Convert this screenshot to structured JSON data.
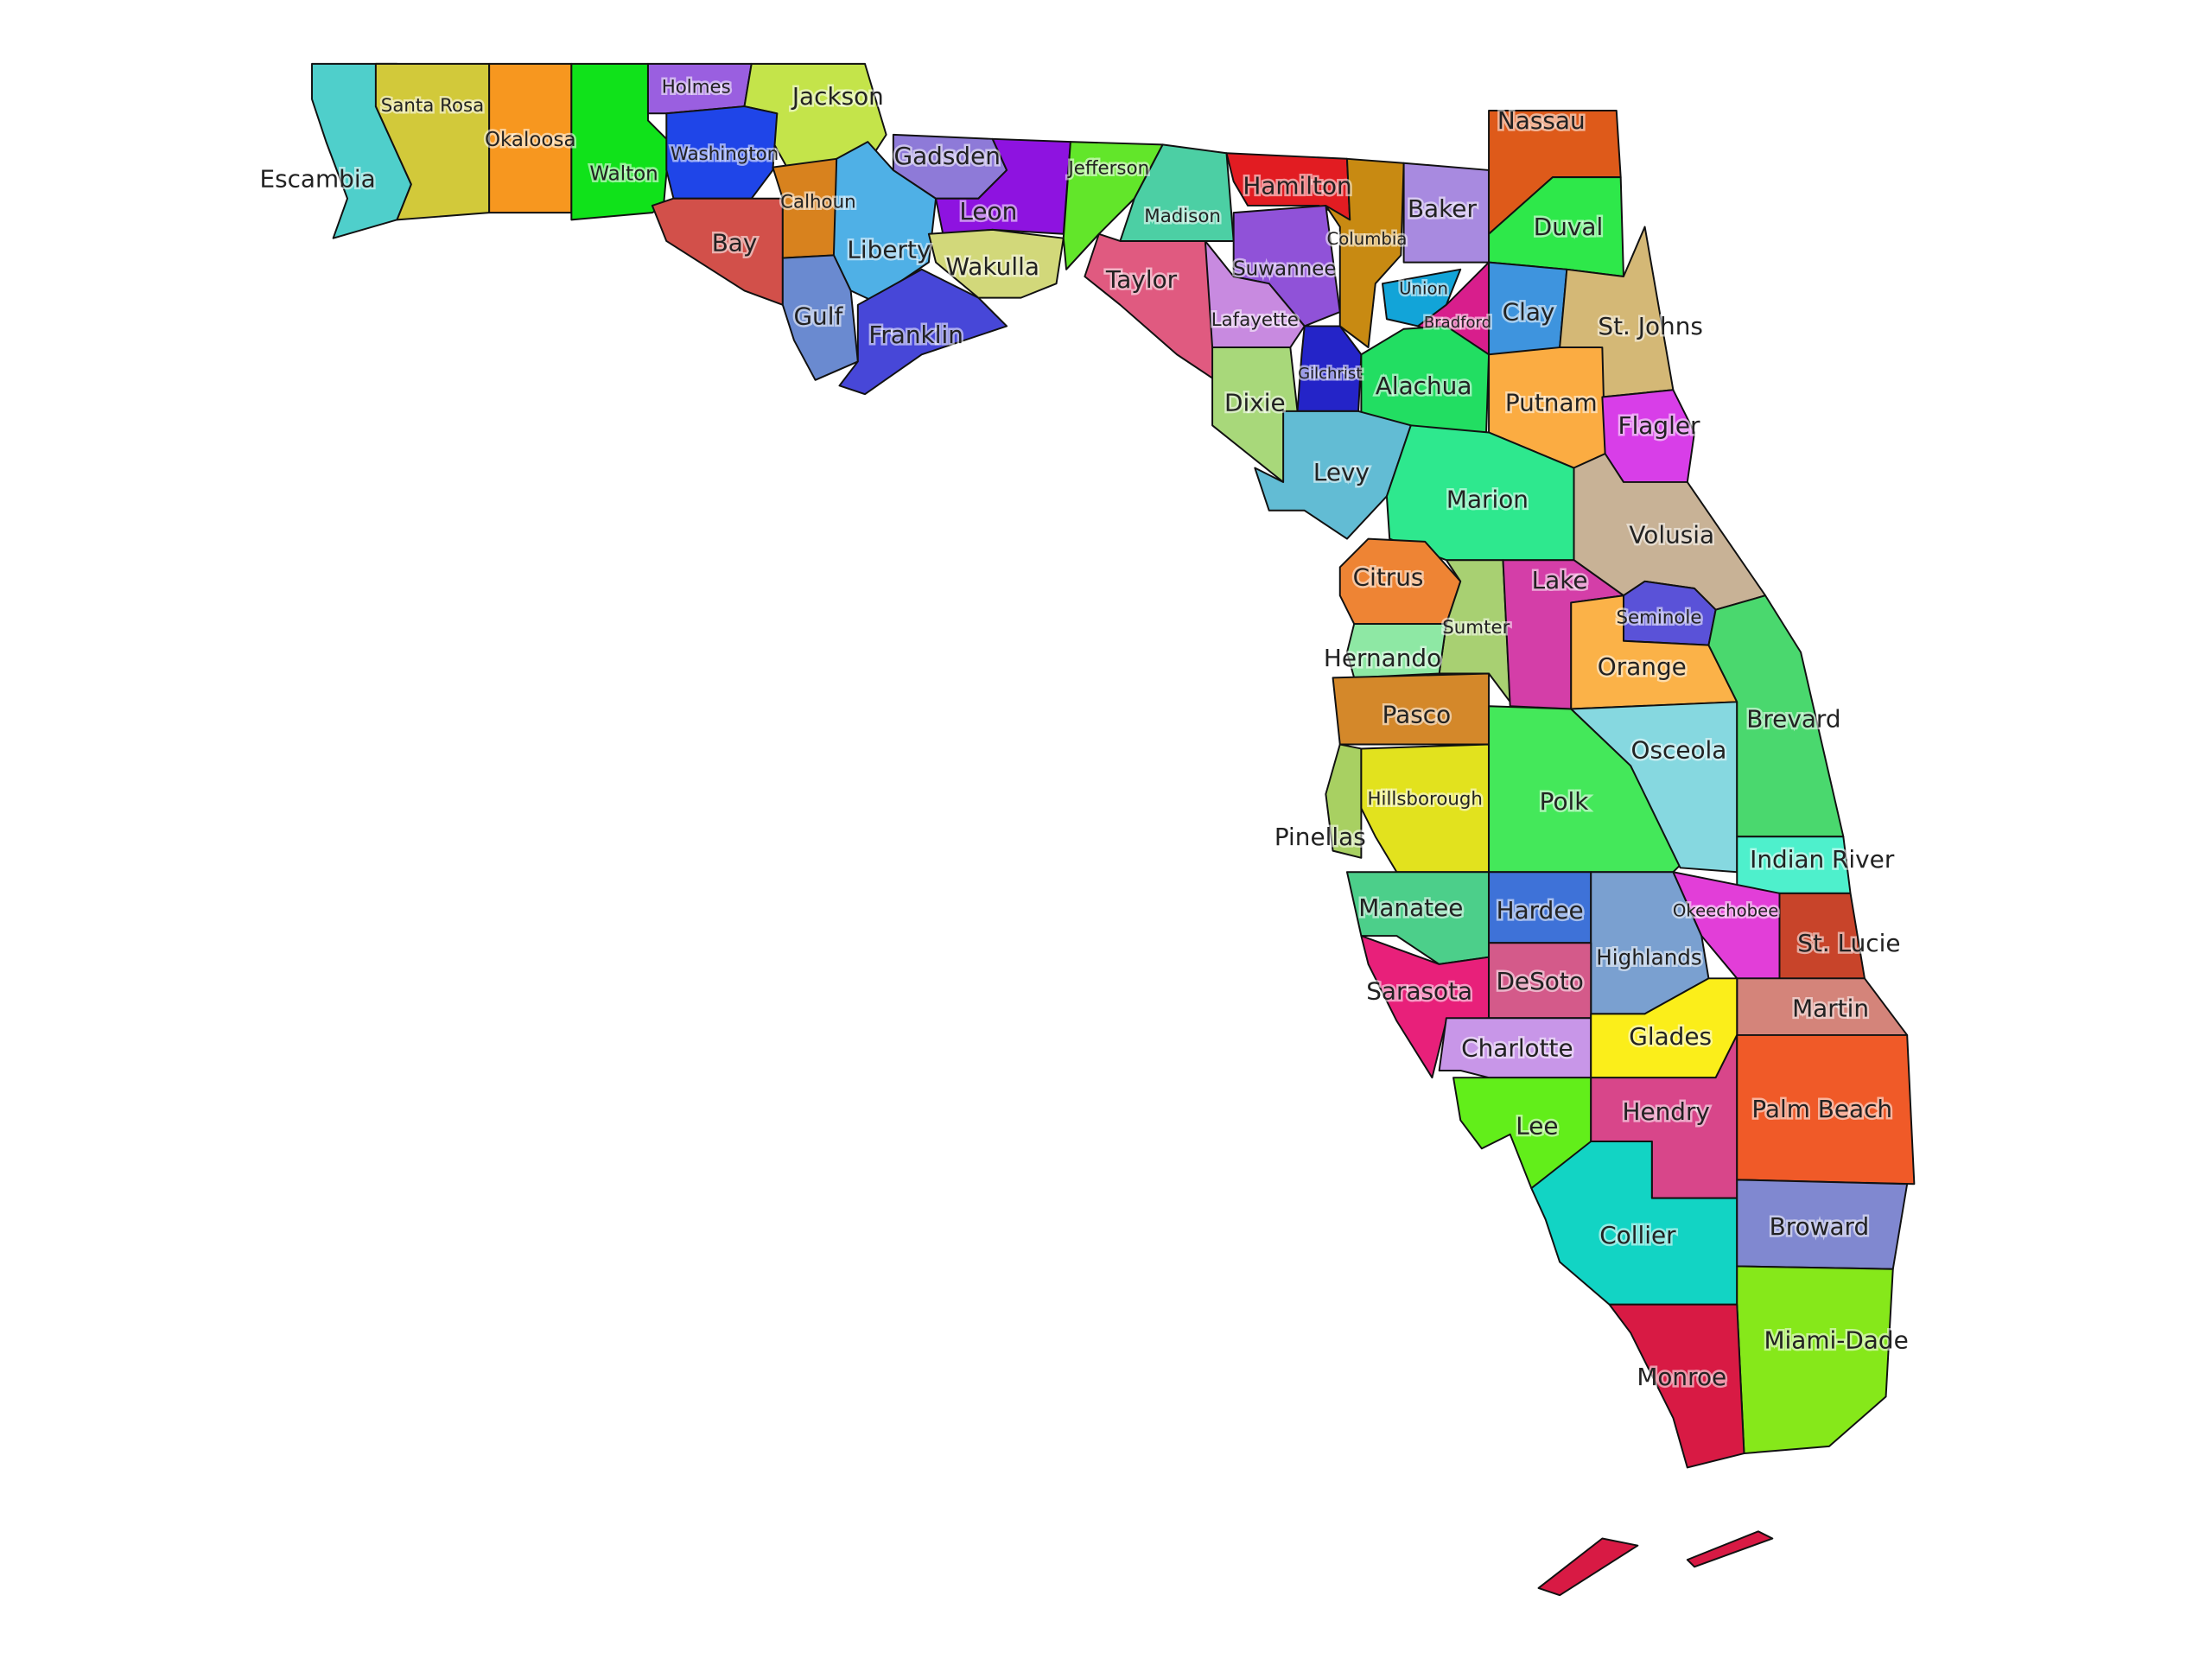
{
  "map": {
    "region": "Florida",
    "counties": [
      {
        "name": "Escambia",
        "color": "#4fcfcb"
      },
      {
        "name": "Santa Rosa",
        "color": "#d2c93a"
      },
      {
        "name": "Okaloosa",
        "color": "#f7971f"
      },
      {
        "name": "Walton",
        "color": "#10e21a"
      },
      {
        "name": "Holmes",
        "color": "#9a5fe0"
      },
      {
        "name": "Jackson",
        "color": "#c4e44a"
      },
      {
        "name": "Washington",
        "color": "#1f45e8"
      },
      {
        "name": "Bay",
        "color": "#d2504a"
      },
      {
        "name": "Calhoun",
        "color": "#d8821e"
      },
      {
        "name": "Liberty",
        "color": "#4fb0e6"
      },
      {
        "name": "Gulf",
        "color": "#6a8ad0"
      },
      {
        "name": "Franklin",
        "color": "#4747d8"
      },
      {
        "name": "Gadsden",
        "color": "#8e7ad8"
      },
      {
        "name": "Leon",
        "color": "#8e13e0"
      },
      {
        "name": "Wakulla",
        "color": "#d2d87a"
      },
      {
        "name": "Jefferson",
        "color": "#62e62a"
      },
      {
        "name": "Madison",
        "color": "#4ccfa4"
      },
      {
        "name": "Taylor",
        "color": "#e05a80"
      },
      {
        "name": "Hamilton",
        "color": "#e21c22"
      },
      {
        "name": "Suwannee",
        "color": "#9052d8"
      },
      {
        "name": "Lafayette",
        "color": "#c88ae0"
      },
      {
        "name": "Columbia",
        "color": "#c88a12"
      },
      {
        "name": "Baker",
        "color": "#a88ae0"
      },
      {
        "name": "Nassau",
        "color": "#de5a1a"
      },
      {
        "name": "Duval",
        "color": "#2ee84a"
      },
      {
        "name": "Union",
        "color": "#12a4d8"
      },
      {
        "name": "Bradford",
        "color": "#d81e8c"
      },
      {
        "name": "Clay",
        "color": "#3e94de"
      },
      {
        "name": "St. Johns",
        "color": "#d4b876"
      },
      {
        "name": "Gilchrist",
        "color": "#2424c8"
      },
      {
        "name": "Alachua",
        "color": "#22de62"
      },
      {
        "name": "Dixie",
        "color": "#a8d87a"
      },
      {
        "name": "Levy",
        "color": "#62bcd4"
      },
      {
        "name": "Putnam",
        "color": "#fbac42"
      },
      {
        "name": "Flagler",
        "color": "#d83ee8"
      },
      {
        "name": "Marion",
        "color": "#2ee88e"
      },
      {
        "name": "Volusia",
        "color": "#c8b296"
      },
      {
        "name": "Citrus",
        "color": "#ee8434"
      },
      {
        "name": "Sumter",
        "color": "#a8d072"
      },
      {
        "name": "Lake",
        "color": "#d43ea8"
      },
      {
        "name": "Seminole",
        "color": "#5a52d8"
      },
      {
        "name": "Orange",
        "color": "#fbb248"
      },
      {
        "name": "Hernando",
        "color": "#8ee8a4"
      },
      {
        "name": "Pasco",
        "color": "#d4882a"
      },
      {
        "name": "Pinellas",
        "color": "#a8d062"
      },
      {
        "name": "Hillsborough",
        "color": "#e2e21e"
      },
      {
        "name": "Polk",
        "color": "#44e85a"
      },
      {
        "name": "Osceola",
        "color": "#86d8e0"
      },
      {
        "name": "Brevard",
        "color": "#4ad86e"
      },
      {
        "name": "Indian River",
        "color": "#4ef0cc"
      },
      {
        "name": "Manatee",
        "color": "#4ccf8a"
      },
      {
        "name": "Hardee",
        "color": "#3e72d8"
      },
      {
        "name": "Highlands",
        "color": "#7aa0d0"
      },
      {
        "name": "Okeechobee",
        "color": "#e23ed8"
      },
      {
        "name": "St. Lucie",
        "color": "#c8442a"
      },
      {
        "name": "Martin",
        "color": "#d4847a"
      },
      {
        "name": "Sarasota",
        "color": "#e8207a"
      },
      {
        "name": "DeSoto",
        "color": "#d45a8a"
      },
      {
        "name": "Charlotte",
        "color": "#c896e8"
      },
      {
        "name": "Glades",
        "color": "#fbee1a"
      },
      {
        "name": "Lee",
        "color": "#62ee1a"
      },
      {
        "name": "Hendry",
        "color": "#d8468a"
      },
      {
        "name": "Palm Beach",
        "color": "#f05a28"
      },
      {
        "name": "Collier",
        "color": "#12d4c4"
      },
      {
        "name": "Broward",
        "color": "#8088d0"
      },
      {
        "name": "Miami-Dade",
        "color": "#86e81a"
      },
      {
        "name": "Monroe",
        "color": "#d81a44"
      }
    ]
  }
}
